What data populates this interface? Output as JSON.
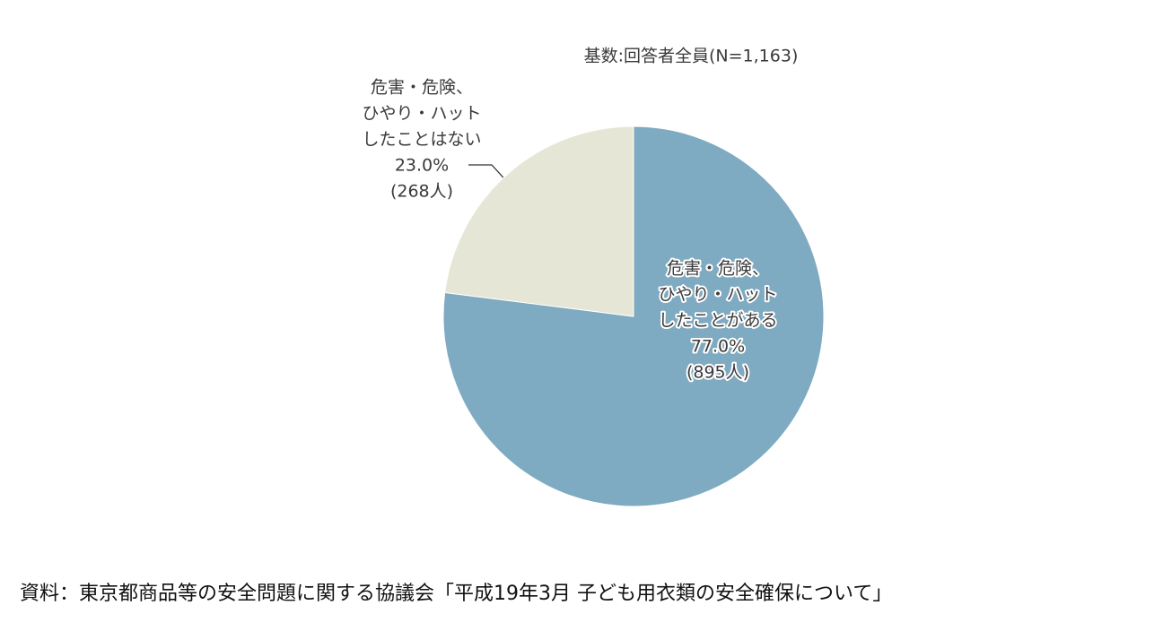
{
  "chart_data": {
    "type": "pie",
    "subtitle": "基数:回答者全員(N=1,163)",
    "labels": [
      [
        "危害・危険、",
        "ひやり・ハット",
        "したことがある"
      ],
      [
        "危害・危険、",
        "ひやり・ハット",
        "したことはない"
      ]
    ],
    "values": [
      77,
      23
    ],
    "value_labels": [
      "77.0%",
      "23.0%"
    ],
    "counts": [
      895,
      268
    ],
    "count_labels": [
      "(895人)",
      "(268人)"
    ],
    "colors": [
      "#7eaac2",
      "#e5e6d5"
    ],
    "source": "資料：東京都商品等の安全問題に関する協議会「平成19年3月 子ども用衣類の安全確保について」"
  }
}
